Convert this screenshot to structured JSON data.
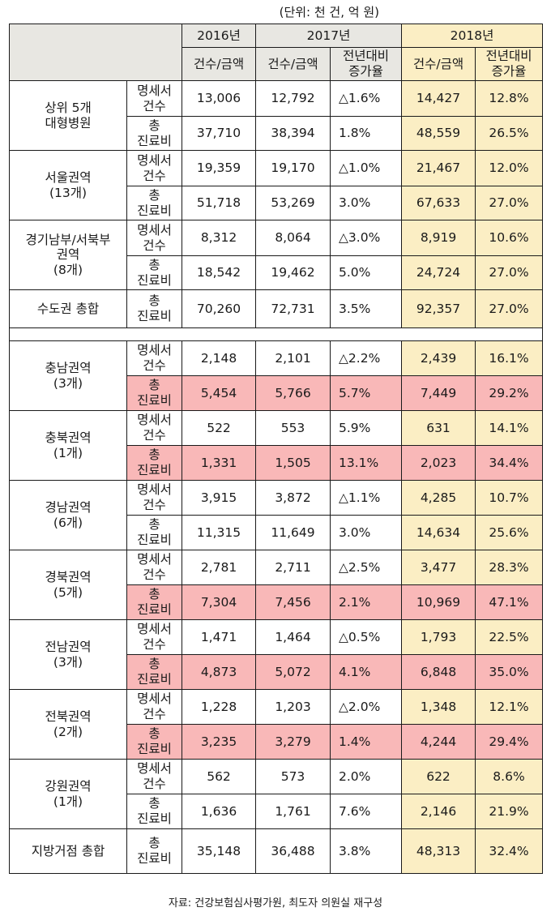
{
  "unit_note": "(단위: 천 건, 억 원)",
  "header": {
    "years": [
      "2016년",
      "2017년",
      "2018년"
    ],
    "col_amount": "건수/금액",
    "col_rate": "전년대비\n증가율"
  },
  "labels": {
    "bills": "명세서\n건수",
    "total": "총\n진료비"
  },
  "groups": [
    {
      "region": "상위 5개\n대형병원",
      "highlight": false,
      "rows": [
        {
          "type": "명세서\n건수",
          "v2016": "13,006",
          "v2017": "12,792",
          "r2017": "△1.6%",
          "v2018": "14,427",
          "r2018": "12.8%"
        },
        {
          "type": "총\n진료비",
          "v2016": "37,710",
          "v2017": "38,394",
          "r2017": "1.8%",
          "v2018": "48,559",
          "r2018": "26.5%"
        }
      ]
    },
    {
      "region": "서울권역\n(13개)",
      "highlight": false,
      "rows": [
        {
          "type": "명세서\n건수",
          "v2016": "19,359",
          "v2017": "19,170",
          "r2017": "△1.0%",
          "v2018": "21,467",
          "r2018": "12.0%"
        },
        {
          "type": "총\n진료비",
          "v2016": "51,718",
          "v2017": "53,269",
          "r2017": "3.0%",
          "v2018": "67,633",
          "r2018": "27.0%"
        }
      ]
    },
    {
      "region": "경기남부/서북부\n권역\n(8개)",
      "highlight": false,
      "rows": [
        {
          "type": "명세서\n건수",
          "v2016": "8,312",
          "v2017": "8,064",
          "r2017": "△3.0%",
          "v2018": "8,919",
          "r2018": "10.6%"
        },
        {
          "type": "총\n진료비",
          "v2016": "18,542",
          "v2017": "19,462",
          "r2017": "5.0%",
          "v2018": "24,724",
          "r2018": "27.0%"
        }
      ]
    }
  ],
  "capital_total": {
    "region": "수도권 총합",
    "type": "총\n진료비",
    "v2016": "70,260",
    "v2017": "72,731",
    "r2017": "3.5%",
    "v2018": "92,357",
    "r2018": "27.0%"
  },
  "local_groups": [
    {
      "region": "충남권역\n(3개)",
      "highlight": true,
      "rows": [
        {
          "type": "명세서\n건수",
          "v2016": "2,148",
          "v2017": "2,101",
          "r2017": "△2.2%",
          "v2018": "2,439",
          "r2018": "16.1%"
        },
        {
          "type": "총\n진료비",
          "v2016": "5,454",
          "v2017": "5,766",
          "r2017": "5.7%",
          "v2018": "7,449",
          "r2018": "29.2%"
        }
      ]
    },
    {
      "region": "충북권역\n(1개)",
      "highlight": true,
      "rows": [
        {
          "type": "명세서\n건수",
          "v2016": "522",
          "v2017": "553",
          "r2017": "5.9%",
          "v2018": "631",
          "r2018": "14.1%"
        },
        {
          "type": "총\n진료비",
          "v2016": "1,331",
          "v2017": "1,505",
          "r2017": "13.1%",
          "v2018": "2,023",
          "r2018": "34.4%"
        }
      ]
    },
    {
      "region": "경남권역\n(6개)",
      "highlight": false,
      "rows": [
        {
          "type": "명세서\n건수",
          "v2016": "3,915",
          "v2017": "3,872",
          "r2017": "△1.1%",
          "v2018": "4,285",
          "r2018": "10.7%"
        },
        {
          "type": "총\n진료비",
          "v2016": "11,315",
          "v2017": "11,649",
          "r2017": "3.0%",
          "v2018": "14,634",
          "r2018": "25.6%"
        }
      ]
    },
    {
      "region": "경북권역\n(5개)",
      "highlight": true,
      "rows": [
        {
          "type": "명세서\n건수",
          "v2016": "2,781",
          "v2017": "2,711",
          "r2017": "△2.5%",
          "v2018": "3,477",
          "r2018": "28.3%"
        },
        {
          "type": "총\n진료비",
          "v2016": "7,304",
          "v2017": "7,456",
          "r2017": "2.1%",
          "v2018": "10,969",
          "r2018": "47.1%"
        }
      ]
    },
    {
      "region": "전남권역\n(3개)",
      "highlight": true,
      "rows": [
        {
          "type": "명세서\n건수",
          "v2016": "1,471",
          "v2017": "1,464",
          "r2017": "△0.5%",
          "v2018": "1,793",
          "r2018": "22.5%"
        },
        {
          "type": "총\n진료비",
          "v2016": "4,873",
          "v2017": "5,072",
          "r2017": "4.1%",
          "v2018": "6,848",
          "r2018": "35.0%"
        }
      ]
    },
    {
      "region": "전북권역\n(2개)",
      "highlight": true,
      "rows": [
        {
          "type": "명세서\n건수",
          "v2016": "1,228",
          "v2017": "1,203",
          "r2017": "△2.0%",
          "v2018": "1,348",
          "r2018": "12.1%"
        },
        {
          "type": "총\n진료비",
          "v2016": "3,235",
          "v2017": "3,279",
          "r2017": "1.4%",
          "v2018": "4,244",
          "r2018": "29.4%"
        }
      ]
    },
    {
      "region": "강원권역\n(1개)",
      "highlight": false,
      "rows": [
        {
          "type": "명세서\n건수",
          "v2016": "562",
          "v2017": "573",
          "r2017": "2.0%",
          "v2018": "622",
          "r2018": "8.6%"
        },
        {
          "type": "총\n진료비",
          "v2016": "1,636",
          "v2017": "1,761",
          "r2017": "7.6%",
          "v2018": "2,146",
          "r2018": "21.9%"
        }
      ]
    }
  ],
  "local_total": {
    "region": "지방거점 총합",
    "type": "총\n진료비",
    "v2016": "35,148",
    "v2017": "36,488",
    "r2017": "3.8%",
    "v2018": "48,313",
    "r2018": "32.4%"
  },
  "source": "자료: 건강보험심사평가원, 최도자 의원실 재구성",
  "colors": {
    "header_bg": "#e8e7e2",
    "year2018_bg": "#fbeec4",
    "highlight_bg": "#f9b8b8",
    "border": "#1a1a1a"
  }
}
